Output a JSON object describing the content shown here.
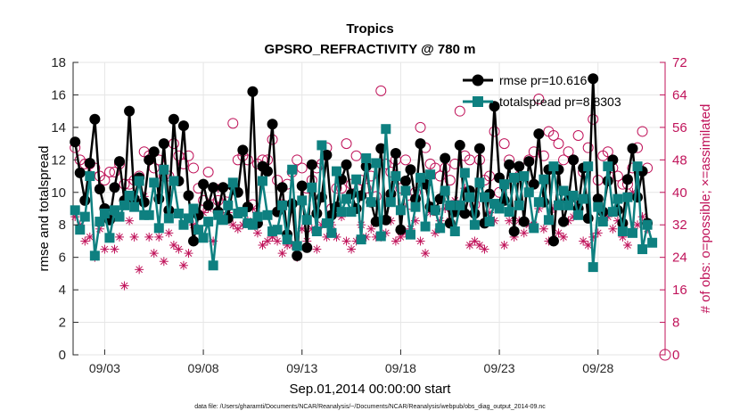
{
  "chart_data": {
    "type": "line",
    "title": "Tropics",
    "subtitle": "GPSRO_REFRACTIVITY @ 780 m",
    "xlabel": "Sep.01,2014 00:00:00 start",
    "ylabel_left": "rmse and totalspread",
    "ylabel_right": "# of obs: o=possible; ×=assimilated",
    "ylim_left": [
      0,
      18
    ],
    "ylim_right": [
      0,
      72
    ],
    "xlim_days": [
      0.9,
      30.9
    ],
    "yticks_left": [
      0,
      2,
      4,
      6,
      8,
      10,
      12,
      14,
      16,
      18
    ],
    "yticks_right": [
      0,
      8,
      16,
      24,
      32,
      40,
      48,
      56,
      64,
      72
    ],
    "xticks": [
      {
        "day": 2.5,
        "label": "09/03"
      },
      {
        "day": 7.5,
        "label": "09/08"
      },
      {
        "day": 12.5,
        "label": "09/13"
      },
      {
        "day": 17.5,
        "label": "09/18"
      },
      {
        "day": 22.5,
        "label": "09/23"
      },
      {
        "day": 27.5,
        "label": "09/28"
      }
    ],
    "x_step_days": 0.25,
    "x_start_day": 1.0,
    "series": [
      {
        "name": "rmse",
        "legend": "rmse pr=10.616",
        "color": "#000000",
        "marker": "circle",
        "values": [
          13.1,
          11.2,
          9.5,
          11.8,
          14.5,
          10.2,
          9.0,
          8.3,
          10.3,
          11.9,
          9.5,
          15.0,
          9.6,
          10.9,
          9.4,
          12.0,
          12.5,
          9.6,
          13.0,
          8.9,
          14.5,
          10.7,
          14.1,
          9.8,
          7.0,
          8.6,
          10.5,
          9.2,
          10.3,
          8.8,
          10.3,
          8.4,
          10.4,
          10.0,
          12.6,
          9.1,
          16.2,
          8.1,
          11.6,
          11.3,
          14.2,
          8.8,
          10.3,
          7.4,
          9.3,
          6.1,
          10.4,
          6.6,
          11.7,
          8.7,
          9.7,
          12.3,
          8.6,
          9.1,
          10.8,
          11.7,
          9.9,
          9.0,
          9.8,
          11.6,
          9.4,
          8.2,
          12.7,
          8.3,
          9.9,
          12.4,
          7.7,
          10.7,
          11.4,
          9.6,
          13.0,
          10.5,
          9.1,
          8.9,
          9.6,
          12.1,
          8.1,
          8.8,
          12.9,
          8.7,
          10.1,
          8.7,
          12.7,
          8.1,
          9.9,
          15.3,
          10.9,
          9.5,
          11.7,
          7.6,
          11.6,
          8.2,
          11.9,
          10.5,
          13.6,
          9.4,
          11.4,
          7.0,
          11.4,
          8.2,
          9.5,
          12.0,
          9.0,
          11.5,
          8.4,
          17.0,
          9.6,
          8.8,
          10.7,
          12.0,
          8.9,
          8.1,
          10.8,
          12.7,
          9.7,
          11.3,
          8.1
        ],
        "outliers_note": ""
      },
      {
        "name": "totalspread",
        "legend": "totalspread pr=8.8303",
        "color": "#0e8080",
        "marker": "square",
        "values": [
          8.9,
          7.7,
          8.5,
          11.0,
          6.1,
          8.2,
          8.7,
          7.2,
          8.9,
          8.5,
          9.2,
          9.8,
          9.1,
          10.7,
          8.6,
          8.6,
          10.6,
          7.8,
          11.4,
          8.4,
          10.7,
          8.7,
          8.0,
          8.4,
          9.0,
          7.7,
          7.2,
          8.2,
          5.5,
          8.6,
          8.3,
          9.2,
          10.6,
          8.7,
          8.8,
          8.1,
          8.0,
          8.5,
          10.7,
          8.6,
          7.6,
          7.7,
          9.2,
          7.1,
          11.4,
          6.7,
          9.5,
          8.3,
          10.3,
          7.6,
          12.9,
          8.1,
          7.5,
          11.3,
          8.8,
          9.6,
          8.8,
          10.8,
          7.1,
          12.1,
          9.4,
          11.8,
          7.3,
          13.9,
          9.4,
          11.0,
          8.9,
          10.1,
          7.4,
          9.1,
          10.9,
          7.9,
          11.1,
          8.9,
          7.8,
          10.1,
          9.2,
          7.6,
          9.2,
          11.2,
          9.7,
          8.0,
          10.6,
          9.7,
          8.2,
          9.3,
          9.0,
          10.5,
          8.8,
          10.9,
          9.2,
          11.0,
          10.0,
          7.8,
          9.4,
          10.8,
          8.3,
          11.6,
          9.2,
          10.1,
          9.2,
          9.8,
          8.6,
          9.6,
          11.6,
          5.4,
          9.1,
          8.2,
          11.6,
          8.8,
          9.6,
          7.6,
          9.7,
          7.5,
          11.6,
          6.5,
          8.0,
          6.9
        ],
        "outliers_note": ""
      }
    ],
    "obs_possible": {
      "name": "possible",
      "color": "#c0135a",
      "marker": "open-circle",
      "values": [
        51,
        48,
        47,
        47,
        46,
        44,
        43,
        45,
        45,
        47,
        42,
        42,
        43,
        44,
        50,
        49,
        46,
        48,
        44,
        44,
        52,
        49,
        47,
        49,
        46,
        41,
        38,
        45,
        37,
        38,
        37,
        40,
        57,
        48,
        49,
        48,
        37,
        47,
        48,
        48,
        53,
        43,
        37,
        42,
        45,
        48,
        46,
        41,
        43,
        46,
        47,
        51,
        36,
        41,
        41,
        52,
        42,
        49,
        43,
        41,
        44,
        39,
        65,
        47,
        45,
        48,
        41,
        48,
        37,
        40,
        56,
        51,
        47,
        46,
        44,
        46,
        43,
        47,
        60,
        49,
        48,
        37,
        48,
        43,
        44,
        55,
        40,
        52,
        48,
        45,
        44,
        46,
        48,
        50,
        63,
        49,
        55,
        54,
        52,
        48,
        50,
        48,
        54,
        45,
        51,
        58,
        43,
        49,
        50,
        46,
        44,
        42,
        42,
        46,
        51,
        55,
        46
      ]
    },
    "obs_assimilated": {
      "name": "assimilated",
      "color": "#c0135a",
      "marker": "asterisk",
      "values": [
        34,
        32,
        28,
        29,
        24,
        31,
        26,
        33,
        26,
        29,
        17,
        33,
        29,
        21,
        39,
        29,
        25,
        29,
        23,
        30,
        27,
        26,
        22,
        25,
        32,
        31,
        35,
        36,
        28,
        41,
        34,
        35,
        32,
        31,
        32,
        33,
        36,
        30,
        27,
        28,
        29,
        28,
        25,
        27,
        27,
        24,
        31,
        28,
        31,
        26,
        32,
        29,
        32,
        29,
        34,
        28,
        26,
        28,
        32,
        29,
        31,
        29,
        29,
        30,
        33,
        28,
        29,
        30,
        31,
        33,
        28,
        25,
        35,
        30,
        33,
        36,
        33,
        38,
        36,
        41,
        27,
        28,
        27,
        26,
        35,
        33,
        36,
        27,
        33,
        29,
        33,
        30,
        32,
        32,
        36,
        31,
        28,
        36,
        30,
        29,
        33,
        34,
        37,
        28,
        27,
        29,
        30,
        33,
        34,
        31,
        33,
        29,
        27,
        40,
        32,
        34,
        31
      ]
    },
    "footnote": "data file: /Users/gharamti/Documents/NCAR/Reanalysis/~/Documents/NCAR/Reanalysis/webpub/obs_diag_output_2014-09.nc"
  }
}
